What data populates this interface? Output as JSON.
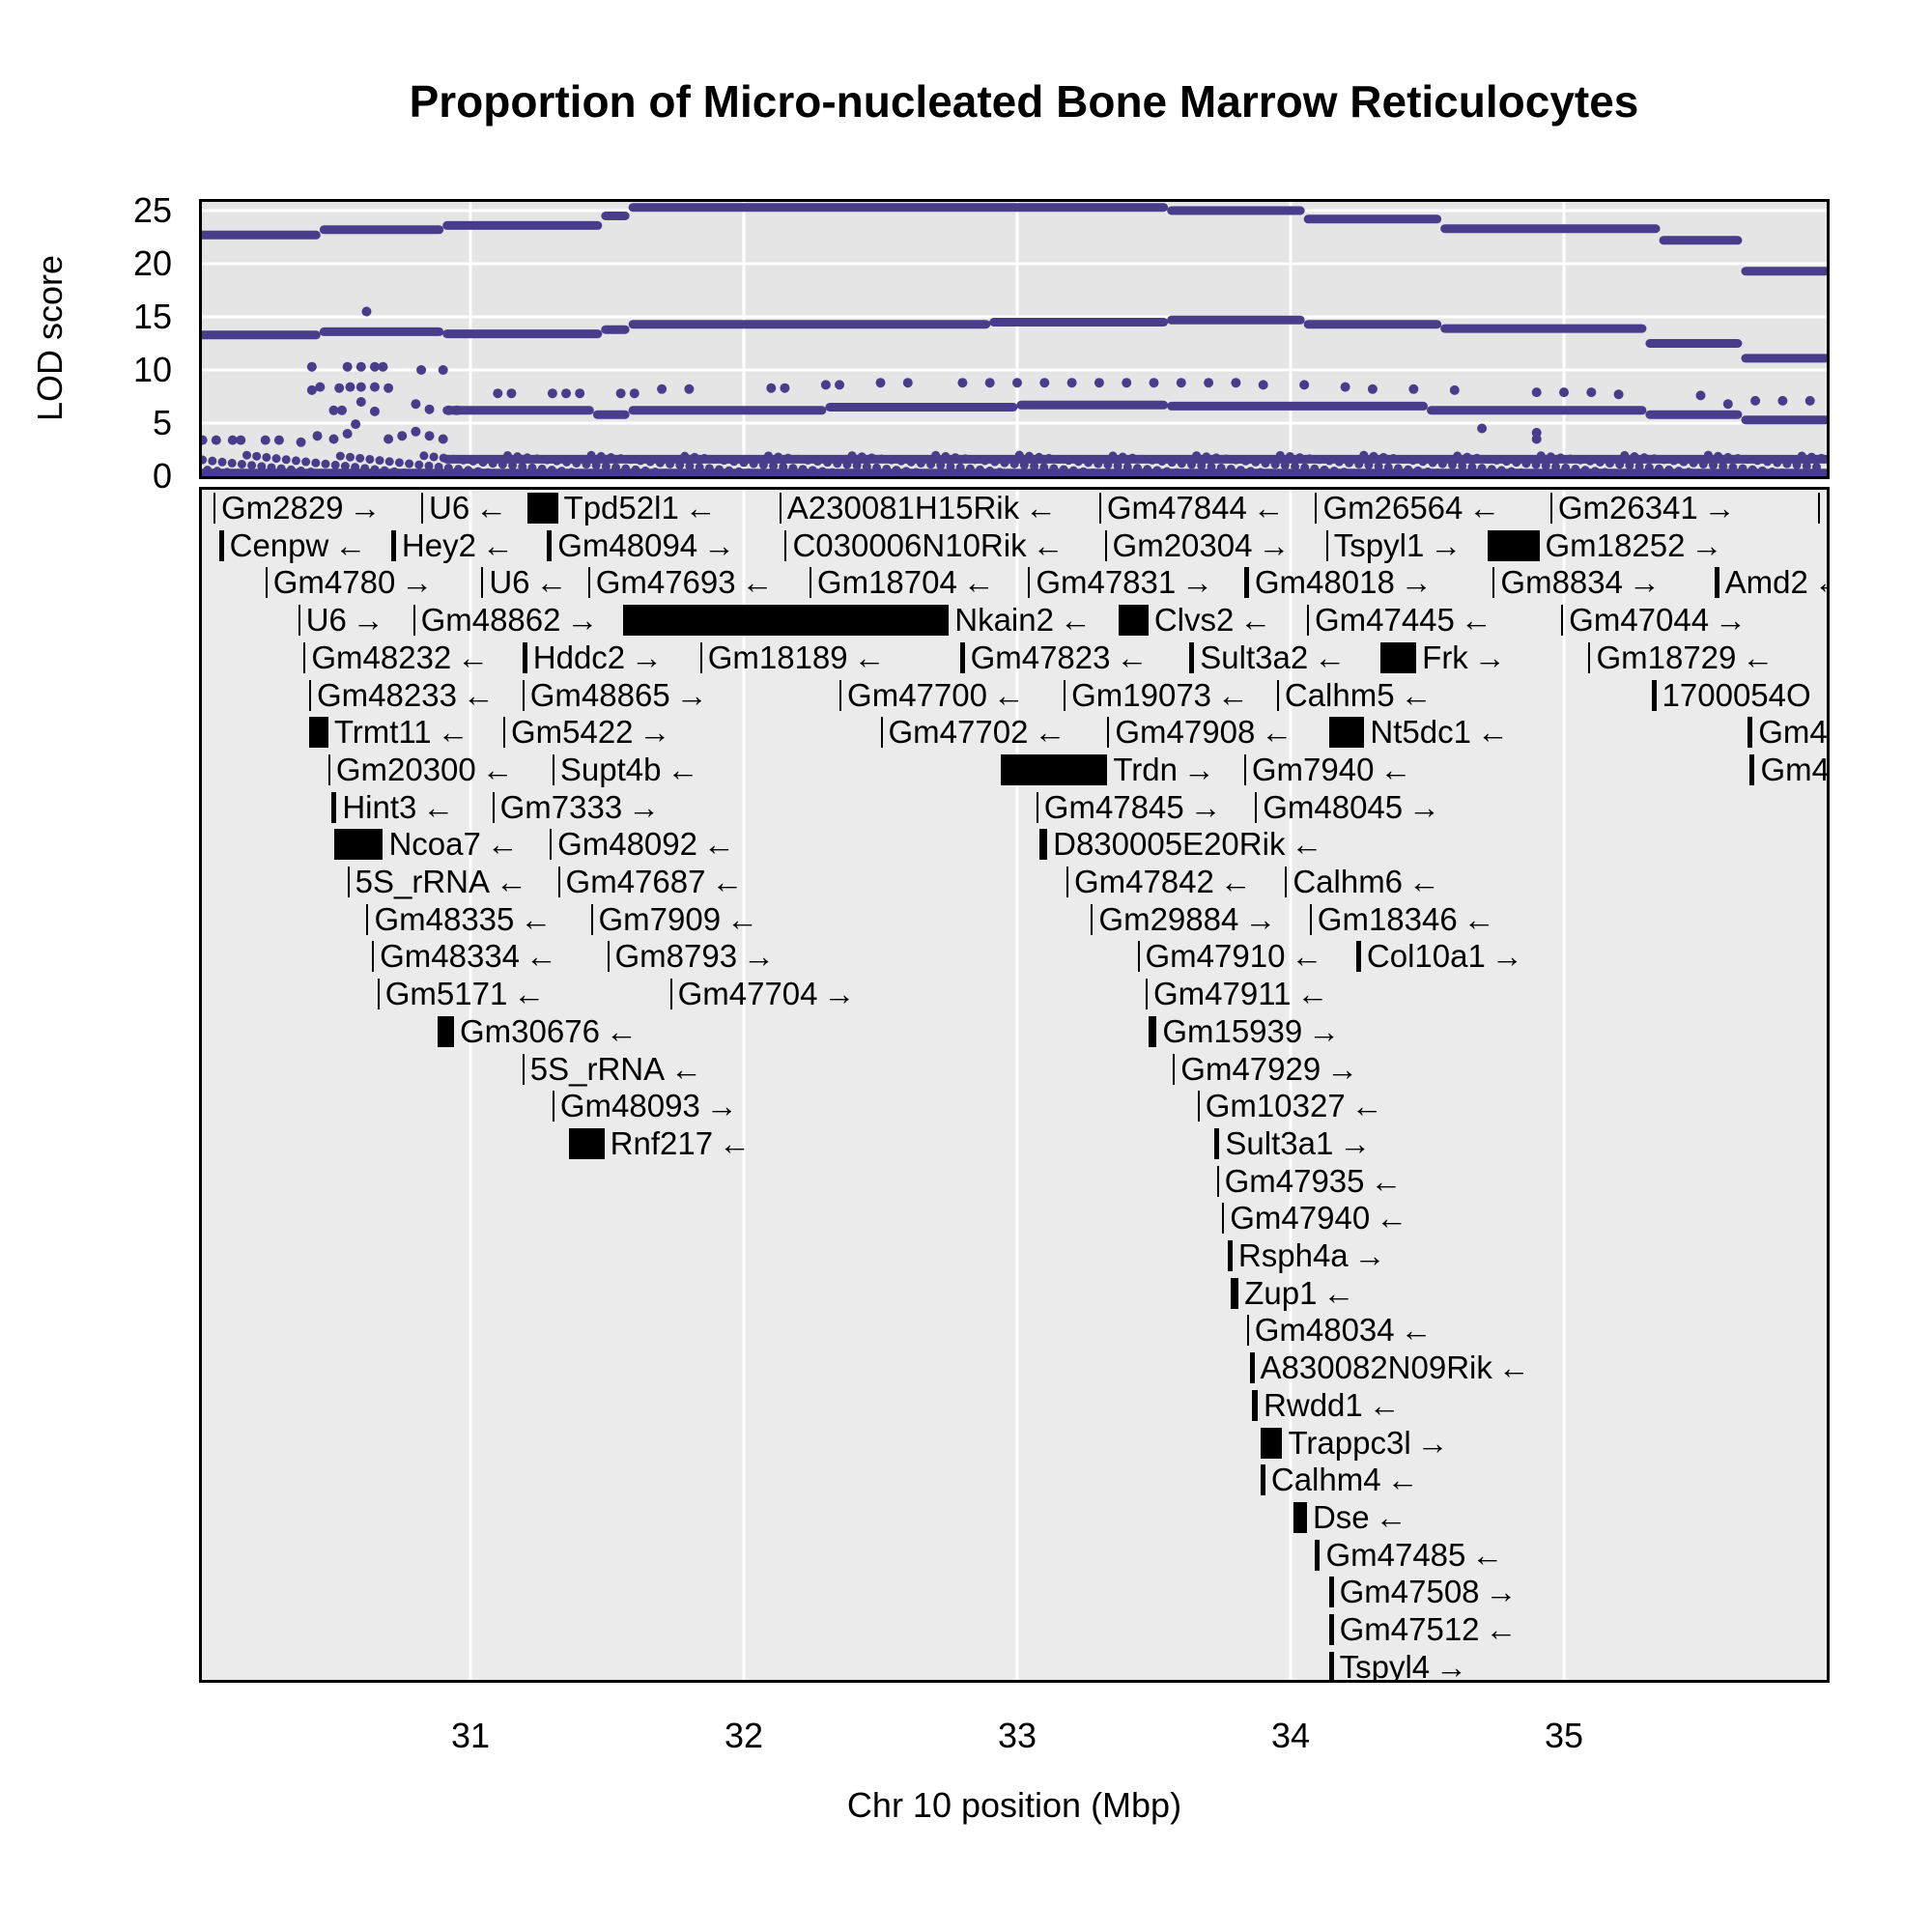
{
  "chart_data": {
    "type": "scatter",
    "title": "Proportion of Micro-nucleated Bone Marrow Reticulocytes",
    "xlabel": "Chr 10 position (Mbp)",
    "ylabel": "LOD score",
    "xlim": [
      30.0,
      35.97
    ],
    "ylim": [
      0,
      26
    ],
    "x_ticks": [
      31,
      32,
      33,
      34,
      35
    ],
    "y_ticks": [
      0,
      5,
      10,
      15,
      20,
      25
    ],
    "grid": true,
    "point_color": "#483d8b",
    "lod_steps": [
      {
        "name": "top",
        "segments": [
          [
            30.0,
            30.45,
            22.7
          ],
          [
            30.45,
            30.9,
            23.2
          ],
          [
            30.9,
            31.48,
            23.6
          ],
          [
            31.48,
            31.58,
            24.5
          ],
          [
            31.58,
            33.55,
            25.3
          ],
          [
            33.55,
            34.05,
            25.0
          ],
          [
            34.05,
            34.55,
            24.2
          ],
          [
            34.55,
            35.35,
            23.3
          ],
          [
            35.35,
            35.65,
            22.2
          ],
          [
            35.65,
            35.97,
            19.3
          ]
        ]
      },
      {
        "name": "second",
        "segments": [
          [
            30.0,
            30.45,
            13.3
          ],
          [
            30.45,
            30.9,
            13.6
          ],
          [
            30.9,
            31.48,
            13.4
          ],
          [
            31.48,
            31.58,
            13.8
          ],
          [
            31.58,
            32.9,
            14.3
          ],
          [
            32.9,
            33.55,
            14.5
          ],
          [
            33.55,
            34.05,
            14.7
          ],
          [
            34.05,
            34.55,
            14.3
          ],
          [
            34.55,
            35.3,
            13.9
          ],
          [
            35.3,
            35.65,
            12.5
          ],
          [
            35.65,
            35.97,
            11.1
          ]
        ]
      },
      {
        "name": "third",
        "segments": [
          [
            30.9,
            31.45,
            6.2
          ],
          [
            31.45,
            31.58,
            5.8
          ],
          [
            31.58,
            32.3,
            6.2
          ],
          [
            32.3,
            33.0,
            6.5
          ],
          [
            33.0,
            33.55,
            6.7
          ],
          [
            33.55,
            34.5,
            6.6
          ],
          [
            34.5,
            35.3,
            6.2
          ],
          [
            35.3,
            35.65,
            5.8
          ],
          [
            35.65,
            35.97,
            5.3
          ]
        ]
      },
      {
        "name": "baseline",
        "segments": [
          [
            30.0,
            35.97,
            0.3
          ]
        ]
      },
      {
        "name": "low",
        "segments": [
          [
            30.9,
            35.97,
            1.6
          ]
        ]
      }
    ],
    "scatter_points": [
      [
        30.02,
        3.4
      ],
      [
        30.07,
        3.4
      ],
      [
        30.13,
        3.4
      ],
      [
        30.16,
        3.4
      ],
      [
        30.25,
        3.4
      ],
      [
        30.3,
        3.4
      ],
      [
        30.38,
        3.2
      ],
      [
        30.44,
        3.8
      ],
      [
        30.5,
        3.5
      ],
      [
        30.55,
        4.0
      ],
      [
        30.42,
        10.3
      ],
      [
        30.55,
        10.3
      ],
      [
        30.6,
        10.3
      ],
      [
        30.65,
        10.3
      ],
      [
        30.68,
        10.3
      ],
      [
        30.82,
        10.0
      ],
      [
        30.9,
        10.0
      ],
      [
        30.42,
        8.1
      ],
      [
        30.45,
        8.4
      ],
      [
        30.52,
        8.3
      ],
      [
        30.56,
        8.4
      ],
      [
        30.6,
        8.4
      ],
      [
        30.65,
        8.4
      ],
      [
        30.7,
        8.3
      ],
      [
        30.5,
        6.2
      ],
      [
        30.53,
        6.2
      ],
      [
        30.6,
        7.0
      ],
      [
        30.65,
        6.1
      ],
      [
        30.8,
        6.8
      ],
      [
        30.85,
        6.3
      ],
      [
        30.92,
        6.2
      ],
      [
        30.95,
        6.2
      ],
      [
        30.62,
        15.5
      ],
      [
        30.58,
        4.9
      ],
      [
        30.7,
        3.5
      ],
      [
        30.75,
        3.8
      ],
      [
        30.8,
        4.2
      ],
      [
        30.85,
        3.8
      ],
      [
        30.9,
        3.5
      ],
      [
        31.1,
        7.8
      ],
      [
        31.15,
        7.8
      ],
      [
        31.3,
        7.8
      ],
      [
        31.35,
        7.8
      ],
      [
        31.4,
        7.8
      ],
      [
        31.55,
        7.8
      ],
      [
        31.6,
        7.8
      ],
      [
        31.7,
        8.2
      ],
      [
        31.8,
        8.2
      ],
      [
        32.1,
        8.3
      ],
      [
        32.15,
        8.3
      ],
      [
        32.3,
        8.6
      ],
      [
        32.35,
        8.6
      ],
      [
        32.5,
        8.8
      ],
      [
        32.6,
        8.8
      ],
      [
        32.8,
        8.8
      ],
      [
        32.9,
        8.8
      ],
      [
        33.0,
        8.8
      ],
      [
        33.1,
        8.8
      ],
      [
        33.2,
        8.8
      ],
      [
        33.3,
        8.8
      ],
      [
        33.4,
        8.8
      ],
      [
        33.5,
        8.8
      ],
      [
        33.6,
        8.8
      ],
      [
        33.7,
        8.8
      ],
      [
        33.8,
        8.8
      ],
      [
        33.9,
        8.6
      ],
      [
        34.05,
        8.6
      ],
      [
        34.2,
        8.4
      ],
      [
        34.3,
        8.2
      ],
      [
        34.45,
        8.2
      ],
      [
        34.6,
        8.1
      ],
      [
        34.9,
        7.9
      ],
      [
        35.0,
        7.9
      ],
      [
        35.1,
        7.9
      ],
      [
        35.2,
        7.7
      ],
      [
        35.5,
        7.6
      ],
      [
        35.6,
        6.8
      ],
      [
        35.7,
        7.1
      ],
      [
        35.8,
        7.1
      ],
      [
        35.9,
        7.1
      ],
      [
        34.7,
        4.5
      ],
      [
        34.9,
        4.1
      ],
      [
        34.9,
        3.5
      ]
    ]
  },
  "genes": [
    {
      "row": 0,
      "start": 30.06,
      "end": 30.06,
      "label": "Gm2829",
      "strand": "→"
    },
    {
      "row": 0,
      "start": 30.82,
      "end": 30.82,
      "label": "U6",
      "strand": "←"
    },
    {
      "row": 0,
      "start": 31.21,
      "end": 31.32,
      "label": "Tpd52l1",
      "strand": "←"
    },
    {
      "row": 0,
      "start": 32.13,
      "end": 32.13,
      "label": "A230081H15Rik",
      "strand": "←"
    },
    {
      "row": 0,
      "start": 33.3,
      "end": 33.3,
      "label": "Gm47844",
      "strand": "←"
    },
    {
      "row": 0,
      "start": 34.09,
      "end": 34.09,
      "label": "Gm26564",
      "strand": "←"
    },
    {
      "row": 0,
      "start": 34.95,
      "end": 34.95,
      "label": "Gm26341",
      "strand": "→"
    },
    {
      "row": 0,
      "start": 35.93,
      "end": 35.93,
      "label": "",
      "strand": ""
    },
    {
      "row": 1,
      "start": 30.08,
      "end": 30.09,
      "label": "Cenpw",
      "strand": "←"
    },
    {
      "row": 1,
      "start": 30.71,
      "end": 30.72,
      "label": "Hey2",
      "strand": "←"
    },
    {
      "row": 1,
      "start": 31.28,
      "end": 31.29,
      "label": "Gm48094",
      "strand": "→"
    },
    {
      "row": 1,
      "start": 32.15,
      "end": 32.15,
      "label": "C030006N10Rik",
      "strand": "←"
    },
    {
      "row": 1,
      "start": 33.32,
      "end": 33.32,
      "label": "Gm20304",
      "strand": "→"
    },
    {
      "row": 1,
      "start": 34.13,
      "end": 34.13,
      "label": "Tspyl1",
      "strand": "→"
    },
    {
      "row": 1,
      "start": 34.72,
      "end": 34.91,
      "label": "Gm18252",
      "strand": "→"
    },
    {
      "row": 2,
      "start": 30.25,
      "end": 30.25,
      "label": "Gm4780",
      "strand": "→"
    },
    {
      "row": 2,
      "start": 31.04,
      "end": 31.04,
      "label": "U6",
      "strand": "←"
    },
    {
      "row": 2,
      "start": 31.43,
      "end": 31.43,
      "label": "Gm47693",
      "strand": "←"
    },
    {
      "row": 2,
      "start": 32.24,
      "end": 32.24,
      "label": "Gm18704",
      "strand": "←"
    },
    {
      "row": 2,
      "start": 33.04,
      "end": 33.04,
      "label": "Gm47831",
      "strand": "→"
    },
    {
      "row": 2,
      "start": 33.83,
      "end": 33.84,
      "label": "Gm48018",
      "strand": "→"
    },
    {
      "row": 2,
      "start": 34.74,
      "end": 34.74,
      "label": "Gm8834",
      "strand": "→"
    },
    {
      "row": 2,
      "start": 35.55,
      "end": 35.56,
      "label": "Amd2",
      "strand": "←"
    },
    {
      "row": 3,
      "start": 30.37,
      "end": 30.37,
      "label": "U6",
      "strand": "→"
    },
    {
      "row": 3,
      "start": 30.79,
      "end": 30.79,
      "label": "Gm48862",
      "strand": "→"
    },
    {
      "row": 3,
      "start": 31.56,
      "end": 32.75,
      "label": "Nkain2",
      "strand": "←"
    },
    {
      "row": 3,
      "start": 33.37,
      "end": 33.48,
      "label": "Clvs2",
      "strand": "←"
    },
    {
      "row": 3,
      "start": 34.06,
      "end": 34.06,
      "label": "Gm47445",
      "strand": "←"
    },
    {
      "row": 3,
      "start": 34.99,
      "end": 34.99,
      "label": "Gm47044",
      "strand": "→"
    },
    {
      "row": 4,
      "start": 30.39,
      "end": 30.39,
      "label": "Gm48232",
      "strand": "←"
    },
    {
      "row": 4,
      "start": 31.19,
      "end": 31.2,
      "label": "Hddc2",
      "strand": "→"
    },
    {
      "row": 4,
      "start": 31.84,
      "end": 31.84,
      "label": "Gm18189",
      "strand": "←"
    },
    {
      "row": 4,
      "start": 32.79,
      "end": 32.8,
      "label": "Gm47823",
      "strand": "←"
    },
    {
      "row": 4,
      "start": 33.63,
      "end": 33.64,
      "label": "Sult3a2",
      "strand": "←"
    },
    {
      "row": 4,
      "start": 34.33,
      "end": 34.46,
      "label": "Frk",
      "strand": "→"
    },
    {
      "row": 4,
      "start": 35.09,
      "end": 35.09,
      "label": "Gm18729",
      "strand": "←"
    },
    {
      "row": 5,
      "start": 30.41,
      "end": 30.41,
      "label": "Gm48233",
      "strand": "←"
    },
    {
      "row": 5,
      "start": 31.19,
      "end": 31.19,
      "label": "Gm48865",
      "strand": "→"
    },
    {
      "row": 5,
      "start": 32.35,
      "end": 32.35,
      "label": "Gm47700",
      "strand": "←"
    },
    {
      "row": 5,
      "start": 33.17,
      "end": 33.17,
      "label": "Gm19073",
      "strand": "←"
    },
    {
      "row": 5,
      "start": 33.95,
      "end": 33.95,
      "label": "Calhm5",
      "strand": "←"
    },
    {
      "row": 5,
      "start": 35.32,
      "end": 35.33,
      "label": "1700054O",
      "strand": ""
    },
    {
      "row": 6,
      "start": 30.41,
      "end": 30.48,
      "label": "Trmt11",
      "strand": "←"
    },
    {
      "row": 6,
      "start": 31.12,
      "end": 31.12,
      "label": "Gm5422",
      "strand": "→"
    },
    {
      "row": 6,
      "start": 32.5,
      "end": 32.5,
      "label": "Gm47702",
      "strand": "←"
    },
    {
      "row": 6,
      "start": 33.33,
      "end": 33.33,
      "label": "Gm47908",
      "strand": "←"
    },
    {
      "row": 6,
      "start": 34.14,
      "end": 34.27,
      "label": "Nt5dc1",
      "strand": "←"
    },
    {
      "row": 6,
      "start": 35.67,
      "end": 35.69,
      "label": "Gm4",
      "strand": ""
    },
    {
      "row": 7,
      "start": 30.48,
      "end": 30.48,
      "label": "Gm20300",
      "strand": "←"
    },
    {
      "row": 7,
      "start": 31.3,
      "end": 31.3,
      "label": "Supt4b",
      "strand": "←"
    },
    {
      "row": 7,
      "start": 32.94,
      "end": 33.33,
      "label": "Trdn",
      "strand": "→"
    },
    {
      "row": 7,
      "start": 33.83,
      "end": 33.83,
      "label": "Gm7940",
      "strand": "←"
    },
    {
      "row": 7,
      "start": 35.68,
      "end": 35.69,
      "label": "Gm4",
      "strand": ""
    },
    {
      "row": 8,
      "start": 30.49,
      "end": 30.51,
      "label": "Hint3",
      "strand": "←"
    },
    {
      "row": 8,
      "start": 31.08,
      "end": 31.08,
      "label": "Gm7333",
      "strand": "→"
    },
    {
      "row": 8,
      "start": 33.07,
      "end": 33.07,
      "label": "Gm47845",
      "strand": "→"
    },
    {
      "row": 8,
      "start": 33.87,
      "end": 33.87,
      "label": "Gm48045",
      "strand": "→"
    },
    {
      "row": 9,
      "start": 30.5,
      "end": 30.68,
      "label": "Ncoa7",
      "strand": "←"
    },
    {
      "row": 9,
      "start": 31.29,
      "end": 31.29,
      "label": "Gm48092",
      "strand": "←"
    },
    {
      "row": 9,
      "start": 33.08,
      "end": 33.11,
      "label": "D830005E20Rik",
      "strand": "←"
    },
    {
      "row": 10,
      "start": 30.55,
      "end": 30.55,
      "label": "5S_rRNA",
      "strand": "←"
    },
    {
      "row": 10,
      "start": 31.32,
      "end": 31.32,
      "label": "Gm47687",
      "strand": "←"
    },
    {
      "row": 10,
      "start": 33.18,
      "end": 33.18,
      "label": "Gm47842",
      "strand": "←"
    },
    {
      "row": 10,
      "start": 33.98,
      "end": 33.98,
      "label": "Calhm6",
      "strand": "←"
    },
    {
      "row": 11,
      "start": 30.62,
      "end": 30.62,
      "label": "Gm48335",
      "strand": "←"
    },
    {
      "row": 11,
      "start": 31.44,
      "end": 31.44,
      "label": "Gm7909",
      "strand": "←"
    },
    {
      "row": 11,
      "start": 33.27,
      "end": 33.27,
      "label": "Gm29884",
      "strand": "→"
    },
    {
      "row": 11,
      "start": 34.07,
      "end": 34.07,
      "label": "Gm18346",
      "strand": "←"
    },
    {
      "row": 12,
      "start": 30.64,
      "end": 30.64,
      "label": "Gm48334",
      "strand": "←"
    },
    {
      "row": 12,
      "start": 31.5,
      "end": 31.5,
      "label": "Gm8793",
      "strand": "→"
    },
    {
      "row": 12,
      "start": 33.44,
      "end": 33.44,
      "label": "Gm47910",
      "strand": "←"
    },
    {
      "row": 12,
      "start": 34.24,
      "end": 34.25,
      "label": "Col10a1",
      "strand": "→"
    },
    {
      "row": 13,
      "start": 30.66,
      "end": 30.66,
      "label": "Gm5171",
      "strand": "←"
    },
    {
      "row": 13,
      "start": 31.73,
      "end": 31.73,
      "label": "Gm47704",
      "strand": "→"
    },
    {
      "row": 13,
      "start": 33.47,
      "end": 33.47,
      "label": "Gm47911",
      "strand": "←"
    },
    {
      "row": 14,
      "start": 30.88,
      "end": 30.94,
      "label": "Gm30676",
      "strand": "←"
    },
    {
      "row": 14,
      "start": 33.48,
      "end": 33.51,
      "label": "Gm15939",
      "strand": "→"
    },
    {
      "row": 15,
      "start": 31.19,
      "end": 31.19,
      "label": "5S_rRNA",
      "strand": "←"
    },
    {
      "row": 15,
      "start": 33.57,
      "end": 33.57,
      "label": "Gm47929",
      "strand": "→"
    },
    {
      "row": 16,
      "start": 31.3,
      "end": 31.3,
      "label": "Gm48093",
      "strand": "→"
    },
    {
      "row": 16,
      "start": 33.66,
      "end": 33.66,
      "label": "Gm10327",
      "strand": "←"
    },
    {
      "row": 17,
      "start": 31.36,
      "end": 31.49,
      "label": "Rnf217",
      "strand": "←"
    },
    {
      "row": 17,
      "start": 33.72,
      "end": 33.74,
      "label": "Sult3a1",
      "strand": "→"
    },
    {
      "row": 18,
      "start": 33.73,
      "end": 33.73,
      "label": "Gm47935",
      "strand": "←"
    },
    {
      "row": 19,
      "start": 33.75,
      "end": 33.75,
      "label": "Gm47940",
      "strand": "←"
    },
    {
      "row": 20,
      "start": 33.77,
      "end": 33.78,
      "label": "Rsph4a",
      "strand": "→"
    },
    {
      "row": 21,
      "start": 33.78,
      "end": 33.81,
      "label": "Zup1",
      "strand": "←"
    },
    {
      "row": 22,
      "start": 33.84,
      "end": 33.84,
      "label": "Gm48034",
      "strand": "←"
    },
    {
      "row": 23,
      "start": 33.85,
      "end": 33.86,
      "label": "A830082N09Rik",
      "strand": "←"
    },
    {
      "row": 24,
      "start": 33.86,
      "end": 33.88,
      "label": "Rwdd1",
      "strand": "←"
    },
    {
      "row": 25,
      "start": 33.89,
      "end": 33.97,
      "label": "Trappc3l",
      "strand": "→"
    },
    {
      "row": 26,
      "start": 33.89,
      "end": 33.9,
      "label": "Calhm4",
      "strand": "←"
    },
    {
      "row": 27,
      "start": 34.01,
      "end": 34.06,
      "label": "Dse",
      "strand": "←"
    },
    {
      "row": 28,
      "start": 34.09,
      "end": 34.1,
      "label": "Gm47485",
      "strand": "←"
    },
    {
      "row": 29,
      "start": 34.14,
      "end": 34.15,
      "label": "Gm47508",
      "strand": "→"
    },
    {
      "row": 30,
      "start": 34.14,
      "end": 34.15,
      "label": "Gm47512",
      "strand": "←"
    },
    {
      "row": 31,
      "start": 34.14,
      "end": 34.15,
      "label": "Tspyl4",
      "strand": "→"
    }
  ]
}
